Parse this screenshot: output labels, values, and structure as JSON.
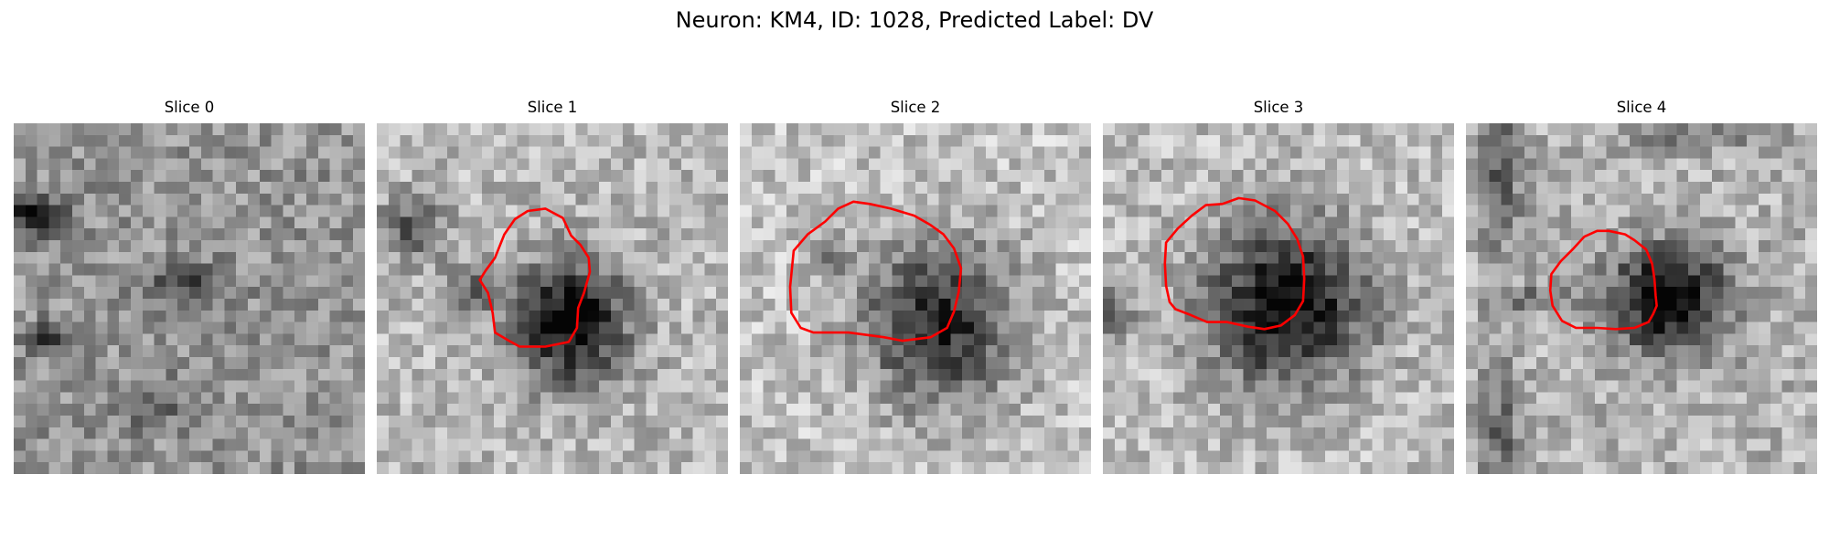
{
  "figure": {
    "title": "Neuron: KM4, ID: 1028, Predicted Label: DV"
  },
  "colors": {
    "contour": "#ff0000",
    "background": "#ffffff"
  },
  "panels": [
    {
      "title": "Slice 0",
      "has_contour": false
    },
    {
      "title": "Slice 1",
      "has_contour": true
    },
    {
      "title": "Slice 2",
      "has_contour": true
    },
    {
      "title": "Slice 3",
      "has_contour": true
    },
    {
      "title": "Slice 4",
      "has_contour": true
    }
  ]
}
